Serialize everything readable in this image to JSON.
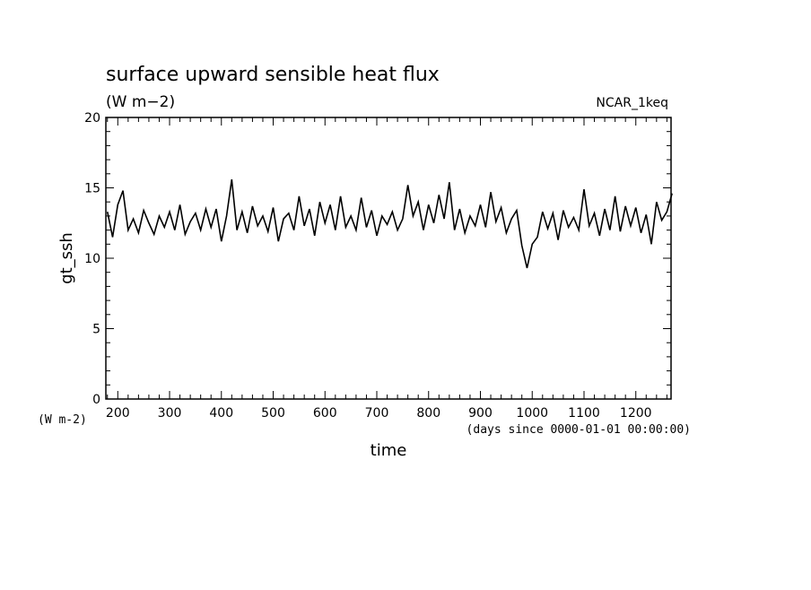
{
  "chart_data": {
    "type": "line",
    "title": "surface upward sensible heat flux",
    "subtitle": "(W m−2)",
    "annotation": "NCAR_1keq",
    "y_unit_label": "(W m-2)",
    "x_unit_label": "(days since 0000-01-01 00:00:00)",
    "xlabel": "time",
    "ylabel": "gt_ssh",
    "xlim": [
      177,
      1268
    ],
    "ylim": [
      0,
      20
    ],
    "xticks": [
      200,
      300,
      400,
      500,
      600,
      700,
      800,
      900,
      1000,
      1100,
      1200
    ],
    "yticks": [
      0,
      5,
      10,
      15,
      20
    ],
    "xminorticks": [
      180,
      220,
      240,
      260,
      280,
      320,
      340,
      360,
      380,
      420,
      440,
      460,
      480,
      520,
      540,
      560,
      580,
      620,
      640,
      660,
      680,
      720,
      740,
      760,
      780,
      820,
      840,
      860,
      880,
      920,
      940,
      960,
      980,
      1020,
      1040,
      1060,
      1080,
      1120,
      1140,
      1160,
      1180,
      1220,
      1240,
      1260
    ],
    "yminorticks": [
      1,
      2,
      3,
      4,
      6,
      7,
      8,
      9,
      11,
      12,
      13,
      14,
      16,
      17,
      18,
      19
    ],
    "series": [
      {
        "name": "gt_ssh",
        "color": "#000000",
        "x": [
          180,
          190,
          200,
          210,
          220,
          230,
          240,
          250,
          260,
          270,
          280,
          290,
          300,
          310,
          320,
          330,
          340,
          350,
          360,
          370,
          380,
          390,
          400,
          410,
          420,
          430,
          440,
          450,
          460,
          470,
          480,
          490,
          500,
          510,
          520,
          530,
          540,
          550,
          560,
          570,
          580,
          590,
          600,
          610,
          620,
          630,
          640,
          650,
          660,
          670,
          680,
          690,
          700,
          710,
          720,
          730,
          740,
          750,
          760,
          770,
          780,
          790,
          800,
          810,
          820,
          830,
          840,
          850,
          860,
          870,
          880,
          890,
          900,
          910,
          920,
          930,
          940,
          950,
          960,
          970,
          980,
          990,
          1000,
          1010,
          1020,
          1030,
          1040,
          1050,
          1060,
          1070,
          1080,
          1090,
          1100,
          1110,
          1120,
          1130,
          1140,
          1150,
          1160,
          1170,
          1180,
          1190,
          1200,
          1210,
          1220,
          1230,
          1240,
          1250,
          1260,
          1270
        ],
        "values": [
          13.3,
          11.5,
          13.8,
          14.8,
          12.0,
          12.8,
          11.8,
          13.4,
          12.5,
          11.7,
          13.0,
          12.2,
          13.3,
          12.0,
          13.8,
          11.7,
          12.6,
          13.2,
          12.0,
          13.5,
          12.2,
          13.5,
          11.2,
          13.0,
          15.6,
          12.0,
          13.3,
          11.8,
          13.7,
          12.3,
          13.0,
          11.9,
          13.6,
          11.2,
          12.8,
          13.2,
          12.0,
          14.4,
          12.3,
          13.5,
          11.6,
          14.0,
          12.5,
          13.8,
          12.0,
          14.4,
          12.2,
          13.0,
          12.0,
          14.3,
          12.2,
          13.4,
          11.6,
          13.0,
          12.4,
          13.3,
          12.0,
          12.8,
          15.2,
          13.0,
          14.0,
          12.0,
          13.8,
          12.5,
          14.5,
          12.8,
          15.4,
          12.0,
          13.5,
          11.8,
          13.0,
          12.3,
          13.8,
          12.2,
          14.7,
          12.6,
          13.6,
          11.8,
          12.8,
          13.4,
          10.9,
          9.3,
          11.0,
          11.5,
          13.3,
          12.1,
          13.2,
          11.3,
          13.4,
          12.2,
          12.9,
          12.0,
          14.9,
          12.3,
          13.2,
          11.6,
          13.5,
          12.0,
          14.4,
          11.9,
          13.7,
          12.3,
          13.6,
          11.8,
          13.1,
          11.0,
          14.0,
          12.7,
          13.3,
          14.6
        ]
      }
    ]
  }
}
